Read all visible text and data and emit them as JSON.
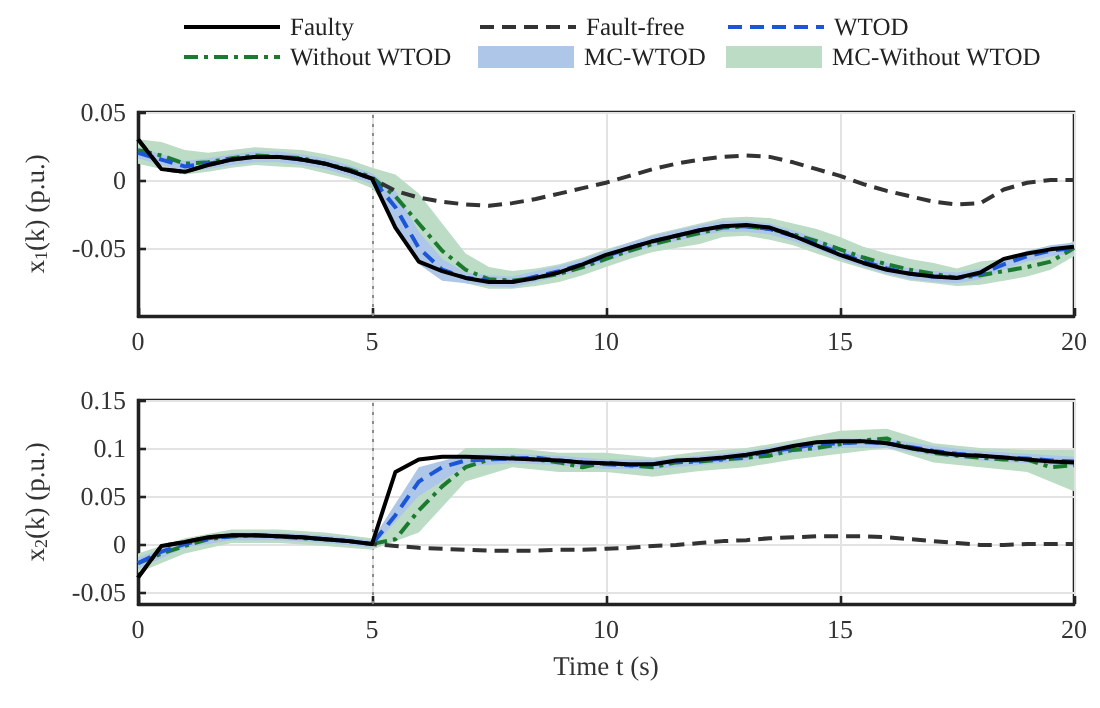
{
  "chart_data": [
    {
      "type": "line",
      "ylabel": "x$_{1}$(k) (p.u.)",
      "legend": "top",
      "grid": true,
      "marker": "none",
      "x": [
        0,
        0.5,
        1,
        1.5,
        2,
        2.5,
        3,
        3.5,
        4,
        4.5,
        5,
        5.5,
        6,
        6.5,
        7,
        7.5,
        8,
        8.5,
        9,
        9.5,
        10,
        10.5,
        11,
        11.5,
        12,
        12.5,
        13,
        13.5,
        14,
        14.5,
        15,
        15.5,
        16,
        16.5,
        17,
        17.5,
        18,
        18.5,
        19,
        19.5,
        20
      ],
      "xlim": [
        0,
        20
      ],
      "xticks": [
        0,
        5,
        10,
        15,
        20
      ],
      "ylim": [
        -0.1,
        0.05
      ],
      "yticks": [
        -0.05,
        0,
        0.05
      ],
      "ref_lines": [
        {
          "axis": "x",
          "value": 5,
          "color": "#8c8c8c",
          "line_style": "dotted"
        }
      ],
      "series": [
        {
          "name": "Faulty",
          "color": "#000000",
          "line_style": "solid",
          "values": [
            0.03,
            0.008,
            0.006,
            0.011,
            0.015,
            0.017,
            0.017,
            0.015,
            0.012,
            0.007,
            0.001,
            -0.035,
            -0.06,
            -0.067,
            -0.072,
            -0.075,
            -0.075,
            -0.072,
            -0.068,
            -0.062,
            -0.055,
            -0.05,
            -0.045,
            -0.041,
            -0.037,
            -0.034,
            -0.033,
            -0.035,
            -0.041,
            -0.048,
            -0.055,
            -0.061,
            -0.066,
            -0.069,
            -0.071,
            -0.072,
            -0.068,
            -0.058,
            -0.054,
            -0.051,
            -0.049
          ]
        },
        {
          "name": "Fault-free",
          "color": "#333333",
          "line_style": "dashed",
          "values": [
            0.03,
            0.008,
            0.006,
            0.011,
            0.015,
            0.017,
            0.017,
            0.015,
            0.012,
            0.007,
            0.001,
            -0.008,
            -0.013,
            -0.016,
            -0.018,
            -0.019,
            -0.017,
            -0.014,
            -0.01,
            -0.006,
            -0.002,
            0.003,
            0.008,
            0.012,
            0.015,
            0.017,
            0.018,
            0.017,
            0.013,
            0.008,
            0.003,
            -0.003,
            -0.008,
            -0.012,
            -0.016,
            -0.018,
            -0.017,
            -0.007,
            -0.002,
            0,
            0
          ]
        },
        {
          "name": "WTOD",
          "color": "#1a56d6",
          "line_style": "dashed",
          "values": [
            0.02,
            0.015,
            0.01,
            0.012,
            0.015,
            0.017,
            0.017,
            0.015,
            0.012,
            0.007,
            0.001,
            -0.02,
            -0.05,
            -0.066,
            -0.072,
            -0.074,
            -0.075,
            -0.071,
            -0.067,
            -0.062,
            -0.056,
            -0.05,
            -0.045,
            -0.041,
            -0.037,
            -0.034,
            -0.034,
            -0.036,
            -0.041,
            -0.047,
            -0.054,
            -0.06,
            -0.065,
            -0.069,
            -0.071,
            -0.072,
            -0.069,
            -0.062,
            -0.056,
            -0.052,
            -0.05
          ]
        },
        {
          "name": "Without WTOD",
          "color": "#1b7a2e",
          "line_style": "dashdot",
          "values": [
            0.022,
            0.018,
            0.012,
            0.013,
            0.016,
            0.018,
            0.017,
            0.016,
            0.012,
            0.008,
            0.002,
            -0.012,
            -0.032,
            -0.052,
            -0.066,
            -0.073,
            -0.074,
            -0.072,
            -0.069,
            -0.064,
            -0.058,
            -0.052,
            -0.047,
            -0.043,
            -0.039,
            -0.035,
            -0.034,
            -0.036,
            -0.04,
            -0.045,
            -0.051,
            -0.057,
            -0.062,
            -0.066,
            -0.069,
            -0.072,
            -0.07,
            -0.067,
            -0.064,
            -0.06,
            -0.05
          ]
        },
        {
          "name": "MC-WTOD",
          "color": "#aec6e8",
          "values": [
            null,
            null,
            null,
            null,
            null,
            null,
            null,
            null,
            null,
            null,
            null,
            null,
            null,
            null,
            null,
            null,
            null,
            null,
            null,
            null,
            null,
            null,
            null,
            null,
            null,
            null,
            null,
            null,
            null,
            null,
            null,
            null,
            null,
            null,
            null,
            null,
            null,
            null,
            null,
            null,
            null
          ],
          "lower": [
            0.016,
            0.011,
            0.006,
            0.008,
            0.011,
            0.013,
            0.013,
            0.011,
            0.008,
            0.003,
            -0.003,
            -0.032,
            -0.062,
            -0.074,
            -0.076,
            -0.078,
            -0.079,
            -0.075,
            -0.071,
            -0.066,
            -0.06,
            -0.054,
            -0.049,
            -0.045,
            -0.041,
            -0.038,
            -0.038,
            -0.04,
            -0.045,
            -0.051,
            -0.058,
            -0.064,
            -0.069,
            -0.073,
            -0.075,
            -0.076,
            -0.073,
            -0.066,
            -0.06,
            -0.056,
            -0.054
          ],
          "upper": [
            0.024,
            0.019,
            0.014,
            0.016,
            0.019,
            0.021,
            0.021,
            0.019,
            0.016,
            0.011,
            0.005,
            -0.008,
            -0.038,
            -0.058,
            -0.068,
            -0.07,
            -0.071,
            -0.067,
            -0.063,
            -0.058,
            -0.052,
            -0.046,
            -0.041,
            -0.037,
            -0.033,
            -0.03,
            -0.03,
            -0.032,
            -0.037,
            -0.043,
            -0.05,
            -0.056,
            -0.061,
            -0.065,
            -0.067,
            -0.068,
            -0.065,
            -0.058,
            -0.052,
            -0.048,
            -0.046
          ]
        },
        {
          "name": "MC-Without WTOD",
          "color": "#bcdcc6",
          "values": [
            null,
            null,
            null,
            null,
            null,
            null,
            null,
            null,
            null,
            null,
            null,
            null,
            null,
            null,
            null,
            null,
            null,
            null,
            null,
            null,
            null,
            null,
            null,
            null,
            null,
            null,
            null,
            null,
            null,
            null,
            null,
            null,
            null,
            null,
            null,
            null,
            null,
            null,
            null,
            null,
            null
          ],
          "lower": [
            0.012,
            0.008,
            0.004,
            0.006,
            0.009,
            0.011,
            0.01,
            0.009,
            0.005,
            0.001,
            -0.006,
            -0.028,
            -0.055,
            -0.068,
            -0.076,
            -0.08,
            -0.08,
            -0.078,
            -0.075,
            -0.07,
            -0.064,
            -0.058,
            -0.053,
            -0.05,
            -0.047,
            -0.042,
            -0.041,
            -0.044,
            -0.048,
            -0.054,
            -0.06,
            -0.065,
            -0.07,
            -0.074,
            -0.076,
            -0.078,
            -0.077,
            -0.074,
            -0.071,
            -0.066,
            -0.056
          ],
          "upper": [
            0.03,
            0.028,
            0.022,
            0.02,
            0.022,
            0.024,
            0.023,
            0.022,
            0.019,
            0.015,
            0.009,
            0.004,
            -0.01,
            -0.032,
            -0.054,
            -0.064,
            -0.067,
            -0.065,
            -0.062,
            -0.057,
            -0.051,
            -0.046,
            -0.04,
            -0.036,
            -0.032,
            -0.028,
            -0.027,
            -0.028,
            -0.032,
            -0.036,
            -0.042,
            -0.049,
            -0.054,
            -0.058,
            -0.061,
            -0.065,
            -0.06,
            -0.058,
            -0.056,
            -0.053,
            -0.045
          ]
        }
      ]
    },
    {
      "type": "line",
      "xlabel": "Time t (s)",
      "ylabel": "x$_{2}$(k) (p.u.)",
      "grid": true,
      "marker": "none",
      "x": [
        0,
        0.5,
        1,
        1.5,
        2,
        2.5,
        3,
        3.5,
        4,
        4.5,
        5,
        5.5,
        6,
        6.5,
        7,
        7.5,
        8,
        8.5,
        9,
        9.5,
        10,
        10.5,
        11,
        11.5,
        12,
        12.5,
        13,
        13.5,
        14,
        14.5,
        15,
        15.5,
        16,
        16.5,
        17,
        17.5,
        18,
        18.5,
        19,
        19.5,
        20
      ],
      "xlim": [
        0,
        20
      ],
      "xticks": [
        0,
        5,
        10,
        15,
        20
      ],
      "ylim": [
        -0.0625,
        0.15
      ],
      "yticks": [
        -0.05,
        0,
        0.05,
        0.1,
        0.15
      ],
      "ref_lines": [
        {
          "axis": "x",
          "value": 5,
          "color": "#8c8c8c",
          "line_style": "dotted"
        }
      ],
      "series": [
        {
          "name": "Faulty",
          "color": "#000000",
          "line_style": "solid",
          "values": [
            -0.035,
            -0.002,
            0.002,
            0.007,
            0.009,
            0.009,
            0.008,
            0.007,
            0.005,
            0.003,
            0,
            0.075,
            0.088,
            0.091,
            0.091,
            0.09,
            0.089,
            0.088,
            0.087,
            0.085,
            0.084,
            0.083,
            0.083,
            0.087,
            0.088,
            0.09,
            0.093,
            0.097,
            0.102,
            0.106,
            0.107,
            0.107,
            0.105,
            0.1,
            0.096,
            0.093,
            0.092,
            0.09,
            0.088,
            0.086,
            0.085
          ]
        },
        {
          "name": "Fault-free",
          "color": "#333333",
          "line_style": "dashed",
          "values": [
            -0.035,
            -0.002,
            0.002,
            0.007,
            0.009,
            0.009,
            0.008,
            0.007,
            0.005,
            0.003,
            0,
            -0.002,
            -0.004,
            -0.005,
            -0.006,
            -0.007,
            -0.007,
            -0.007,
            -0.006,
            -0.006,
            -0.005,
            -0.004,
            -0.002,
            -0.001,
            0.001,
            0.003,
            0.004,
            0.006,
            0.007,
            0.008,
            0.008,
            0.008,
            0.007,
            0.005,
            0.003,
            0.001,
            -0.001,
            -0.001,
            0,
            0,
            0
          ]
        },
        {
          "name": "WTOD",
          "color": "#1a56d6",
          "line_style": "dashed",
          "values": [
            -0.02,
            -0.008,
            0,
            0.006,
            0.008,
            0.009,
            0.008,
            0.007,
            0.005,
            0.003,
            0,
            0.03,
            0.065,
            0.08,
            0.087,
            0.088,
            0.089,
            0.09,
            0.087,
            0.085,
            0.083,
            0.082,
            0.083,
            0.086,
            0.087,
            0.089,
            0.092,
            0.096,
            0.1,
            0.104,
            0.105,
            0.106,
            0.105,
            0.101,
            0.097,
            0.094,
            0.092,
            0.09,
            0.089,
            0.087,
            0.086
          ]
        },
        {
          "name": "Without WTOD",
          "color": "#1b7a2e",
          "line_style": "dashdot",
          "values": [
            -0.02,
            -0.01,
            -0.002,
            0.005,
            0.008,
            0.009,
            0.008,
            0.006,
            0.005,
            0.003,
            0,
            0.005,
            0.035,
            0.06,
            0.08,
            0.088,
            0.09,
            0.088,
            0.085,
            0.08,
            0.085,
            0.082,
            0.08,
            0.085,
            0.086,
            0.088,
            0.09,
            0.092,
            0.098,
            0.1,
            0.104,
            0.108,
            0.11,
            0.1,
            0.095,
            0.092,
            0.09,
            0.088,
            0.088,
            0.08,
            0.082
          ]
        },
        {
          "color": "#aec6e8",
          "x": [
            0,
            1,
            2,
            3,
            4,
            5,
            6,
            7,
            8,
            9,
            10,
            11,
            12,
            13,
            14,
            15,
            16,
            17,
            18,
            19,
            20
          ],
          "values": [
            null,
            null,
            null,
            null,
            null,
            null,
            null,
            null,
            null,
            null,
            null,
            null,
            null,
            null,
            null,
            null,
            null,
            null,
            null,
            null,
            null
          ],
          "lower": [
            -0.026,
            -0.004,
            0.004,
            0.004,
            0.001,
            -0.004,
            0.05,
            0.081,
            0.084,
            0.082,
            0.078,
            0.078,
            0.082,
            0.087,
            0.095,
            0.1,
            0.1,
            0.092,
            0.087,
            0.084,
            0.081
          ],
          "upper": [
            -0.014,
            0.004,
            0.012,
            0.012,
            0.009,
            0.004,
            0.08,
            0.093,
            0.094,
            0.092,
            0.088,
            0.088,
            0.092,
            0.097,
            0.105,
            0.11,
            0.11,
            0.102,
            0.097,
            0.094,
            0.091
          ]
        },
        {
          "color": "#bcdcc6",
          "x": [
            0,
            1,
            2,
            3,
            4,
            5,
            6,
            7,
            8,
            9,
            10,
            11,
            12,
            13,
            14,
            15,
            16,
            17,
            18,
            19,
            20
          ],
          "values": [
            null,
            null,
            null,
            null,
            null,
            null,
            null,
            null,
            null,
            null,
            null,
            null,
            null,
            null,
            null,
            null,
            null,
            null,
            null,
            null,
            null
          ],
          "lower": [
            -0.03,
            -0.01,
            0.001,
            0.001,
            -0.002,
            -0.006,
            0.012,
            0.065,
            0.08,
            0.075,
            0.075,
            0.07,
            0.076,
            0.08,
            0.088,
            0.094,
            0.1,
            0.085,
            0.08,
            0.075,
            0.055
          ],
          "upper": [
            -0.01,
            0.006,
            0.015,
            0.015,
            0.012,
            0.006,
            0.06,
            0.1,
            0.1,
            0.095,
            0.095,
            0.09,
            0.096,
            0.1,
            0.108,
            0.118,
            0.12,
            0.105,
            0.1,
            0.098,
            0.098
          ]
        }
      ]
    }
  ]
}
